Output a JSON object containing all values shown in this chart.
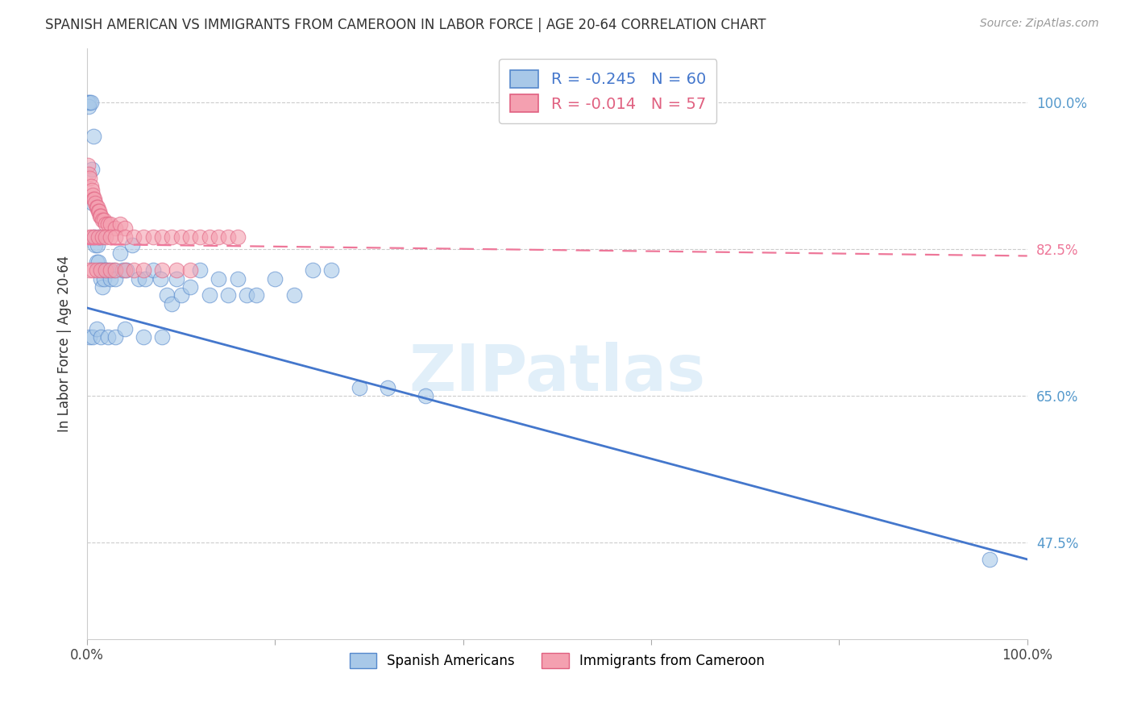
{
  "title": "SPANISH AMERICAN VS IMMIGRANTS FROM CAMEROON IN LABOR FORCE | AGE 20-64 CORRELATION CHART",
  "source": "Source: ZipAtlas.com",
  "ylabel": "In Labor Force | Age 20-64",
  "r_blue": -0.245,
  "n_blue": 60,
  "r_pink": -0.014,
  "n_pink": 57,
  "legend_label_blue": "Spanish Americans",
  "legend_label_pink": "Immigrants from Cameroon",
  "xlim": [
    0.0,
    1.0
  ],
  "ylim": [
    0.36,
    1.065
  ],
  "yticks": [
    0.475,
    0.65,
    0.825,
    1.0
  ],
  "ytick_labels": [
    "47.5%",
    "65.0%",
    "82.5%",
    "100.0%"
  ],
  "xticks": [
    0.0,
    0.2,
    0.4,
    0.6,
    0.8,
    1.0
  ],
  "xtick_labels": [
    "0.0%",
    "",
    "",
    "",
    "",
    "100.0%"
  ],
  "blue_color": "#A8C8E8",
  "pink_color": "#F4A0B0",
  "blue_edge_color": "#5588CC",
  "pink_edge_color": "#E06080",
  "blue_line_color": "#4477CC",
  "pink_line_color": "#EE7799",
  "watermark": "ZIPatlas",
  "blue_x": [
    0.001,
    0.002,
    0.003,
    0.004,
    0.005,
    0.006,
    0.007,
    0.008,
    0.009,
    0.01,
    0.011,
    0.012,
    0.013,
    0.014,
    0.015,
    0.016,
    0.017,
    0.018,
    0.02,
    0.022,
    0.025,
    0.028,
    0.03,
    0.035,
    0.038,
    0.042,
    0.048,
    0.055,
    0.062,
    0.07,
    0.078,
    0.085,
    0.09,
    0.095,
    0.1,
    0.11,
    0.12,
    0.13,
    0.14,
    0.15,
    0.16,
    0.17,
    0.18,
    0.2,
    0.22,
    0.24,
    0.26,
    0.29,
    0.32,
    0.36,
    0.003,
    0.006,
    0.01,
    0.015,
    0.022,
    0.03,
    0.04,
    0.06,
    0.08,
    0.96
  ],
  "blue_y": [
    1.0,
    0.995,
    1.0,
    1.0,
    0.92,
    0.88,
    0.96,
    0.84,
    0.83,
    0.81,
    0.83,
    0.81,
    0.84,
    0.8,
    0.79,
    0.78,
    0.8,
    0.79,
    0.8,
    0.8,
    0.79,
    0.8,
    0.79,
    0.82,
    0.8,
    0.8,
    0.83,
    0.79,
    0.79,
    0.8,
    0.79,
    0.77,
    0.76,
    0.79,
    0.77,
    0.78,
    0.8,
    0.77,
    0.79,
    0.77,
    0.79,
    0.77,
    0.77,
    0.79,
    0.77,
    0.8,
    0.8,
    0.66,
    0.66,
    0.65,
    0.72,
    0.72,
    0.73,
    0.72,
    0.72,
    0.72,
    0.73,
    0.72,
    0.72,
    0.455
  ],
  "pink_x": [
    0.001,
    0.002,
    0.003,
    0.004,
    0.005,
    0.006,
    0.007,
    0.008,
    0.009,
    0.01,
    0.011,
    0.012,
    0.013,
    0.014,
    0.015,
    0.016,
    0.018,
    0.02,
    0.022,
    0.025,
    0.03,
    0.035,
    0.04,
    0.003,
    0.005,
    0.008,
    0.012,
    0.016,
    0.02,
    0.025,
    0.03,
    0.04,
    0.05,
    0.06,
    0.07,
    0.08,
    0.09,
    0.1,
    0.11,
    0.12,
    0.13,
    0.14,
    0.15,
    0.16,
    0.003,
    0.006,
    0.01,
    0.015,
    0.02,
    0.025,
    0.03,
    0.04,
    0.05,
    0.06,
    0.08,
    0.095,
    0.11
  ],
  "pink_y": [
    0.925,
    0.915,
    0.91,
    0.9,
    0.895,
    0.89,
    0.885,
    0.885,
    0.88,
    0.875,
    0.875,
    0.87,
    0.87,
    0.865,
    0.865,
    0.86,
    0.86,
    0.855,
    0.855,
    0.855,
    0.85,
    0.855,
    0.85,
    0.84,
    0.84,
    0.84,
    0.84,
    0.84,
    0.84,
    0.84,
    0.84,
    0.84,
    0.84,
    0.84,
    0.84,
    0.84,
    0.84,
    0.84,
    0.84,
    0.84,
    0.84,
    0.84,
    0.84,
    0.84,
    0.8,
    0.8,
    0.8,
    0.8,
    0.8,
    0.8,
    0.8,
    0.8,
    0.8,
    0.8,
    0.8,
    0.8,
    0.8
  ],
  "blue_trend_x": [
    0.0,
    1.0
  ],
  "blue_trend_y": [
    0.755,
    0.455
  ],
  "pink_trend_x": [
    0.0,
    1.0
  ],
  "pink_trend_y": [
    0.831,
    0.817
  ],
  "background_color": "#ffffff",
  "grid_color": "#cccccc",
  "tick_color_right": "#5599CC",
  "tick_color_pink": "#EE7799"
}
